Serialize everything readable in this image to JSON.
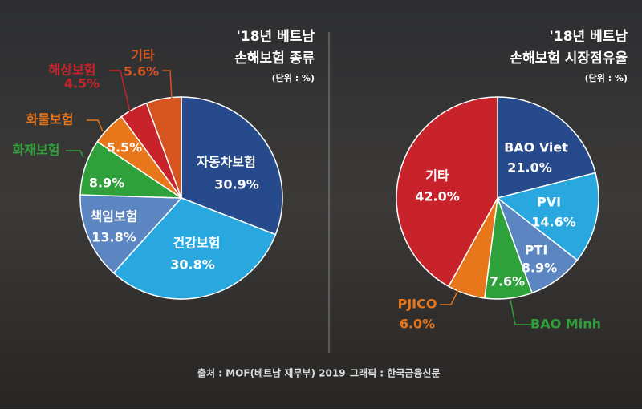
{
  "chart_data": [
    {
      "type": "pie",
      "title": [
        "'18년 베트남",
        "손해보험 종류"
      ],
      "unit": "(단위 : %)",
      "categories": [
        "자동차보험",
        "건강보험",
        "책임보험",
        "화재보험",
        "화물보험",
        "해상보험",
        "기타"
      ],
      "values": [
        30.9,
        30.8,
        13.8,
        8.9,
        5.5,
        4.5,
        5.6
      ],
      "value_labels": [
        "30.9%",
        "30.8%",
        "13.8%",
        "8.9%",
        "5.5%",
        "4.5%",
        "5.6%"
      ],
      "colors": [
        "#264a8c",
        "#29a8e0",
        "#5b86c2",
        "#2fa13a",
        "#e8761a",
        "#c8222a",
        "#d5541f"
      ]
    },
    {
      "type": "pie",
      "title": [
        "'18년 베트남",
        "손해보험 시장점유율"
      ],
      "unit": "(단위 : %)",
      "categories": [
        "BAO Viet",
        "PVI",
        "PTI",
        "BAO Minh",
        "PJICO",
        "기타"
      ],
      "values": [
        21.0,
        14.6,
        8.9,
        7.6,
        6.0,
        42.0
      ],
      "value_labels": [
        "21.0%",
        "14.6%",
        "8.9%",
        "7.6%",
        "6.0%",
        "42.0%"
      ],
      "colors": [
        "#264a8c",
        "#29a8e0",
        "#5b86c2",
        "#2fa13a",
        "#e8761a",
        "#c8222a"
      ]
    }
  ],
  "source": "출처 : MOF(베트남 재무부) 2019",
  "credit": "그래픽 : 한국금융신문"
}
